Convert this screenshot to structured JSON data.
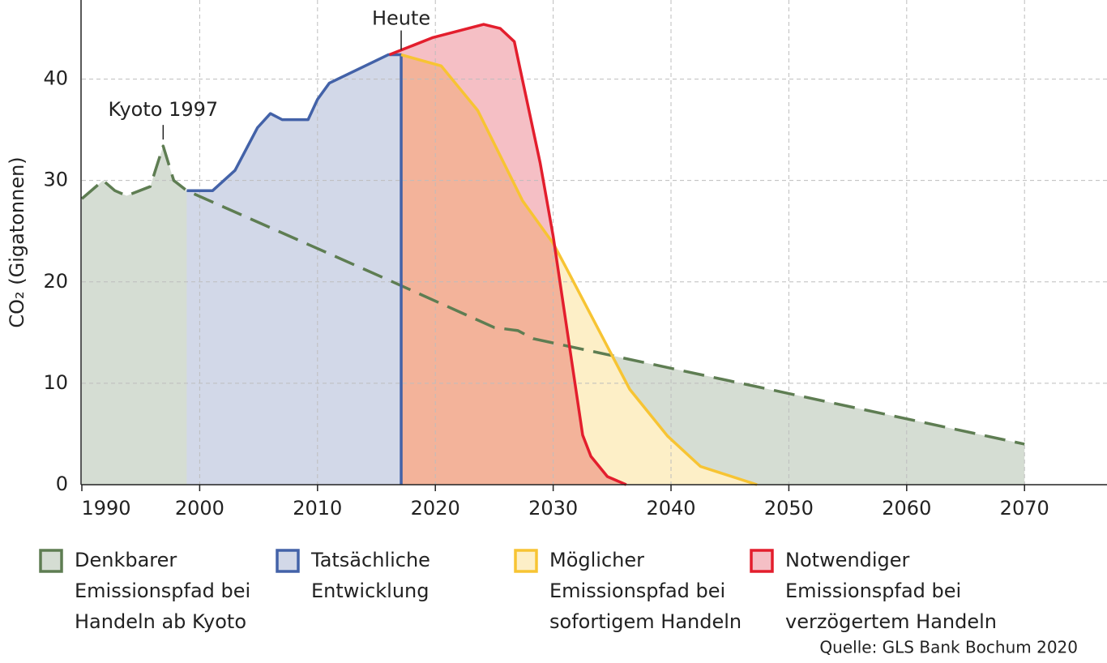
{
  "chart_data": {
    "type": "area",
    "y_label": "CO₂ (Gigatonnen)",
    "xlim": [
      1990,
      2077
    ],
    "ylim": [
      0,
      47.8
    ],
    "xticks": [
      1990,
      2000,
      2010,
      2020,
      2030,
      2040,
      2050,
      2060,
      2070
    ],
    "yticks": [
      0,
      10,
      20,
      30,
      40
    ],
    "grid": true,
    "legend": "bottom",
    "series": [
      {
        "name": "Denkbarer\nEmissionspfad bei\nHandeln ab Kyoto",
        "color": "#5e7d52",
        "fill": "#d5ddd3",
        "dashed": true,
        "x": [
          1990,
          1991.8,
          1992.8,
          1993.8,
          1995.8,
          1996.9,
          1997.8,
          1998.9,
          2016,
          2025,
          2027,
          2028.3,
          2070
        ],
        "values": [
          28.2,
          30,
          29,
          28.5,
          29.4,
          33.4,
          30,
          29,
          20.2,
          15.5,
          15.2,
          14.4,
          4
        ]
      },
      {
        "name": "Tatsächliche\nEntwicklung",
        "color": "#4362a8",
        "fill": "#d2d8e8",
        "x": [
          1998.9,
          2001.1,
          2003,
          2004.9,
          2006,
          2007,
          2009.2,
          2010,
          2011,
          2016,
          2017.1
        ],
        "values": [
          29,
          29,
          31,
          35.2,
          36.6,
          36,
          36,
          38,
          39.6,
          42.4,
          42.4
        ]
      },
      {
        "name": "Möglicher\nEmissionspfad bei\nsofortigem Handeln",
        "color": "#f7c433",
        "fill": "#fdefc7",
        "x": [
          2017.1,
          2020.5,
          2023.6,
          2027.4,
          2030,
          2031.1,
          2036.5,
          2039.7,
          2042.5,
          2047.3
        ],
        "values": [
          42.4,
          41.3,
          36.9,
          28,
          23.8,
          21.4,
          9.4,
          4.8,
          1.8,
          0
        ]
      },
      {
        "name": "Notwendiger\nEmissionspfad bei\nverzögertem Handeln",
        "color": "#e31e2d",
        "fill": "#f5bfc5",
        "blend": "multiply",
        "x": [
          2016.1,
          2019.8,
          2024.1,
          2025.5,
          2026.7,
          2028.9,
          2030,
          2032.5,
          2033.2,
          2034.6,
          2036.2
        ],
        "values": [
          42.4,
          44.1,
          45.4,
          45,
          43.7,
          31.7,
          24.5,
          4.9,
          2.8,
          0.8,
          0
        ]
      }
    ],
    "annotations": [
      {
        "text": "Heute"
      },
      {
        "text": "Kyoto 1997"
      }
    ],
    "source": "Quelle: GLS Bank Bochum 2020"
  }
}
